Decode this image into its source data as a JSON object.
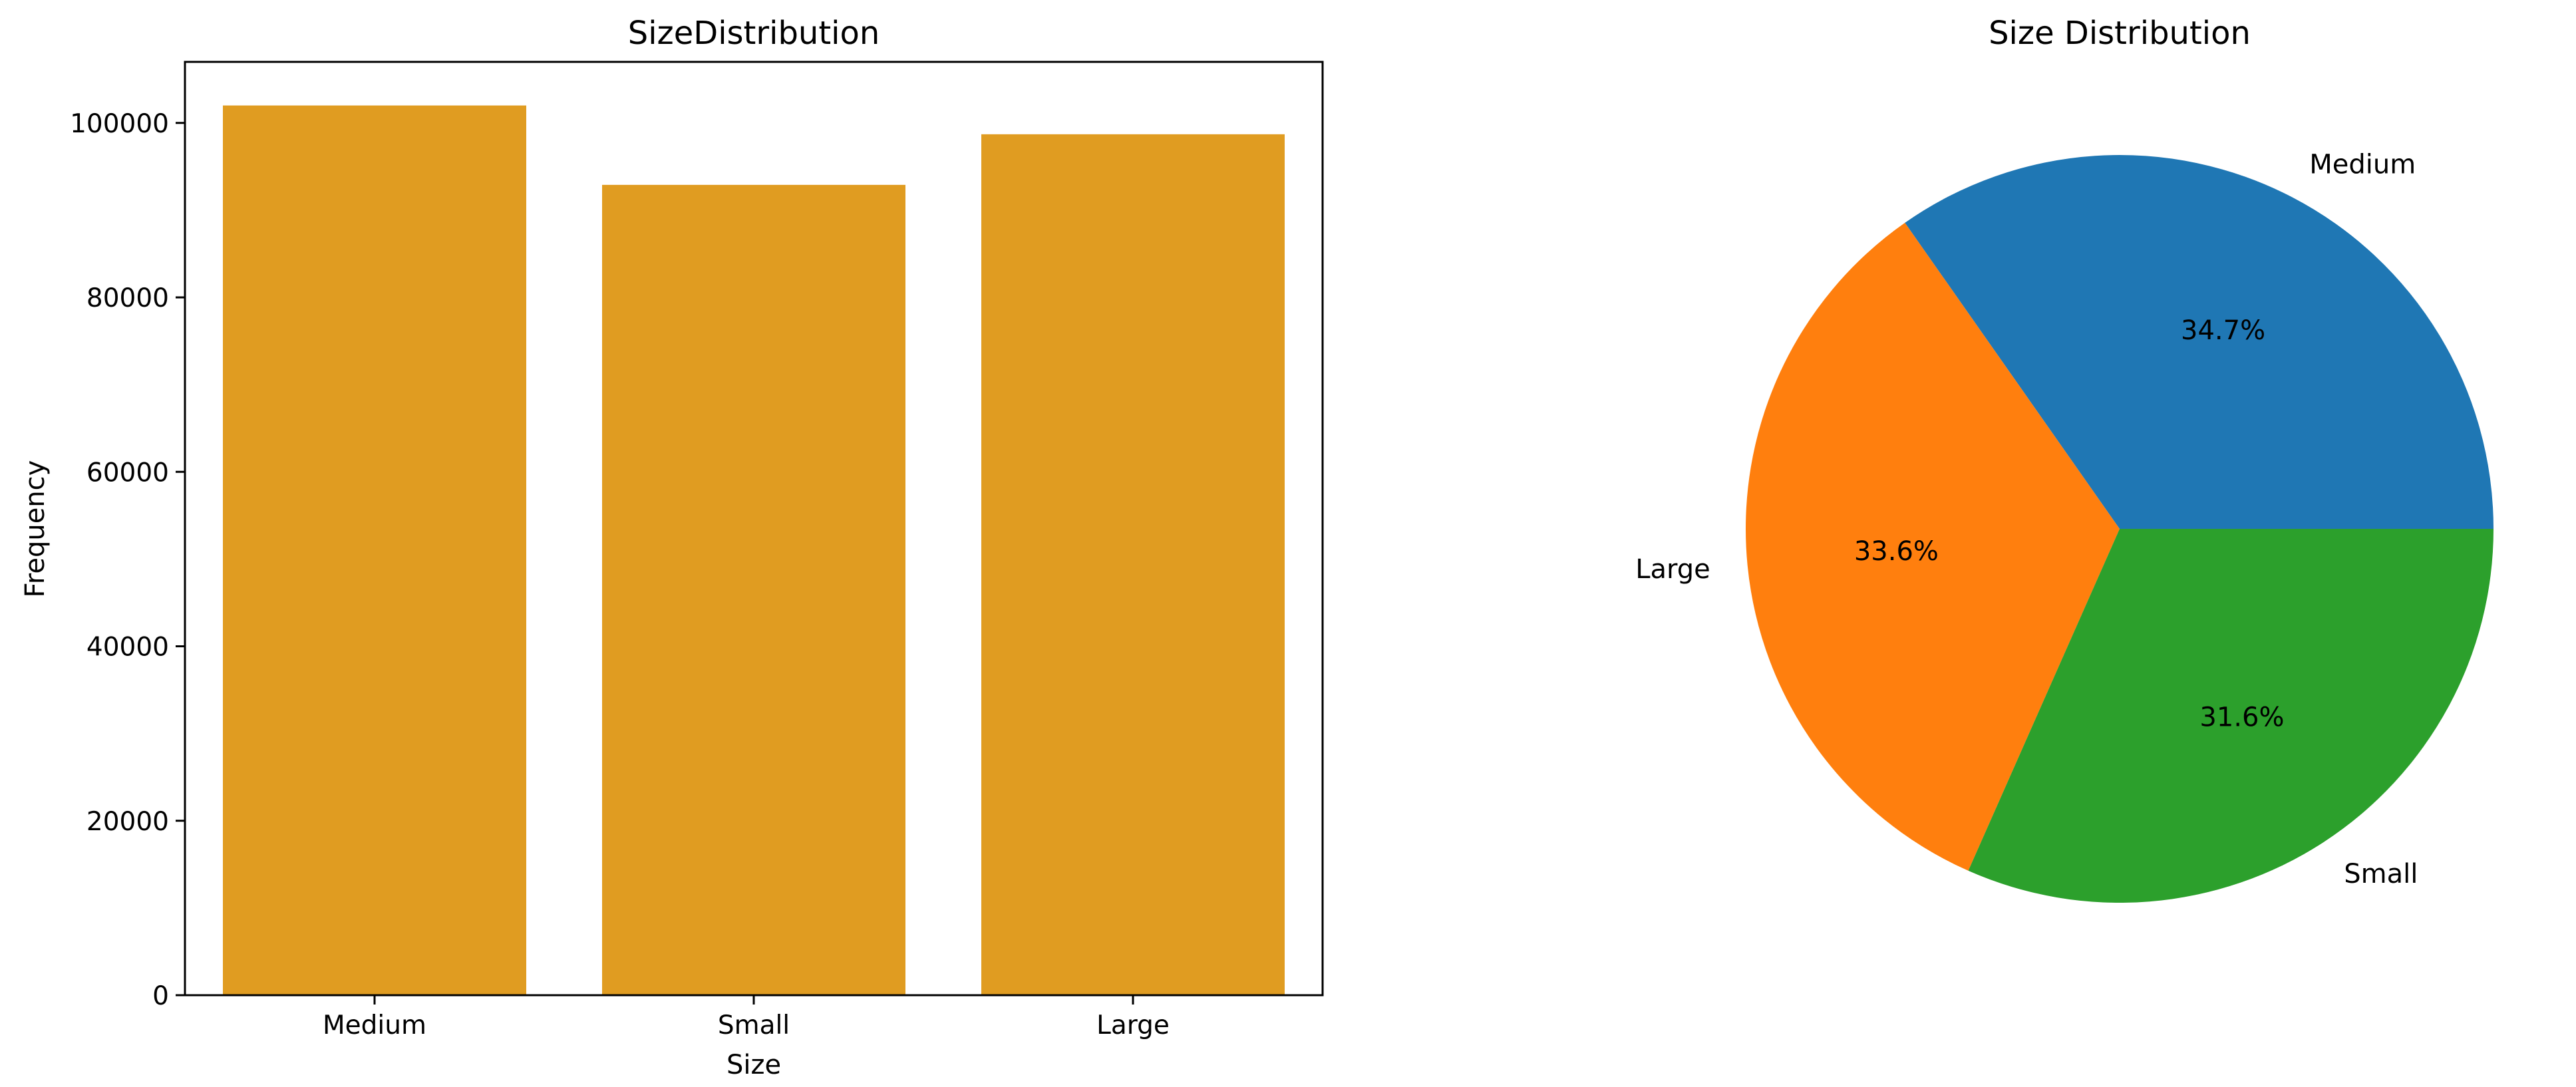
{
  "chart_data": [
    {
      "type": "bar",
      "title": "SizeDistribution",
      "xlabel": "Size",
      "ylabel": "Frequency",
      "categories": [
        "Medium",
        "Small",
        "Large"
      ],
      "values": [
        102000,
        92900,
        98700
      ],
      "ylim": [
        0,
        107000
      ],
      "yticks": [
        0,
        20000,
        40000,
        60000,
        80000,
        100000
      ],
      "ytick_labels": [
        "0",
        "20000",
        "40000",
        "60000",
        "80000",
        "100000"
      ],
      "color": "#e09c21",
      "grid": false
    },
    {
      "type": "pie",
      "title": "Size Distribution",
      "labels": [
        "Medium",
        "Large",
        "Small"
      ],
      "values": [
        34.7,
        33.6,
        31.6
      ],
      "pct_labels": [
        "34.7%",
        "33.6%",
        "31.6%"
      ],
      "colors": [
        "#1f77b4",
        "#ff7f0e",
        "#2ca02c"
      ]
    }
  ]
}
